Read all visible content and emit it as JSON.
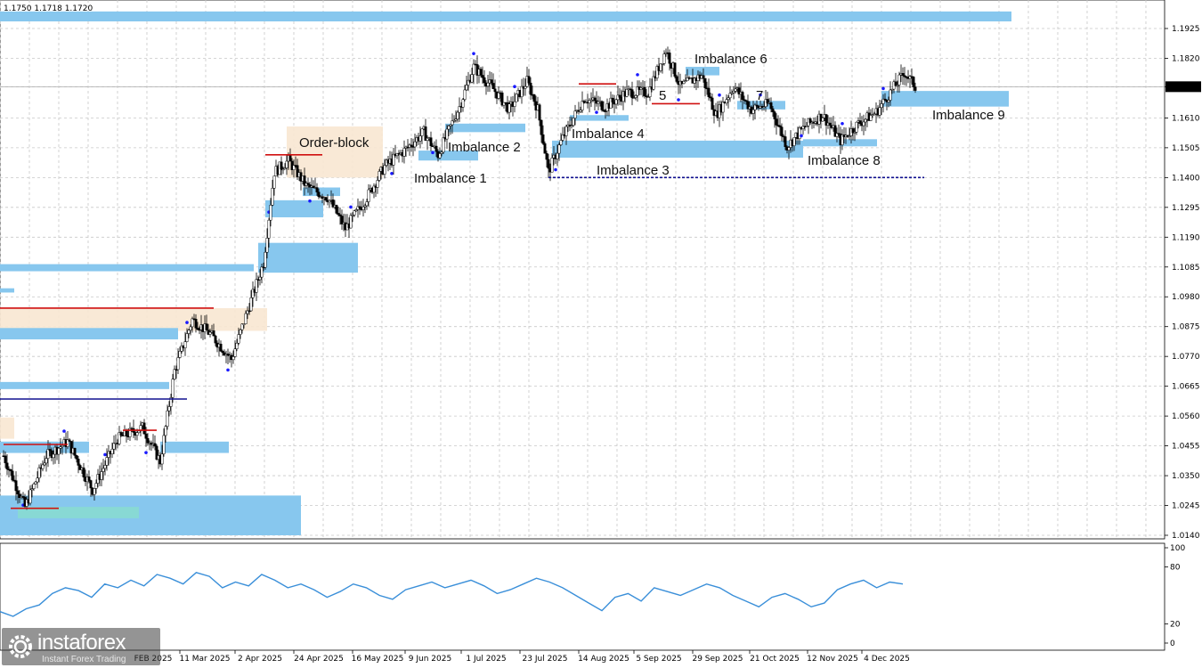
{
  "header": {
    "ohlc_text": "1.1750 1.1718 1.1720"
  },
  "chart_data": [
    {
      "type": "candlestick",
      "symbol_hint": "EUR/USD daily",
      "ylim": [
        1.014,
        1.198
      ],
      "y_ticks": [
        "1.1925",
        "1.1820",
        "1.1720",
        "1.1610",
        "1.1505",
        "1.1400",
        "1.1295",
        "1.1190",
        "1.1085",
        "1.0980",
        "1.0875",
        "1.0770",
        "1.0665",
        "1.0560",
        "1.0455",
        "1.0350",
        "1.0245",
        "1.0140"
      ],
      "current_price": "1.1720",
      "x_ticks": [
        "11 Mar 2025",
        "2 Apr 2025",
        "24 Apr 2025",
        "16 May 2025",
        "9 Jun 2025",
        "1 Jul 2025",
        "23 Jul 2025",
        "14 Aug 2025",
        "5 Sep 2025",
        "29 Sep 2025",
        "21 Oct 2025",
        "12 Nov 2025",
        "4 Dec 2025"
      ],
      "x_tick_partial": "FEB 2025",
      "grid": true,
      "annotations": [
        "Order-block",
        "Imbalance 1",
        "Imbalance 2",
        "Imbalance 3",
        "Imbalance 4",
        "5",
        "Imbalance 6",
        "7",
        "Imbalance 8",
        "Imbalance 9"
      ],
      "levels": {
        "imbalance_3_line": 1.14
      },
      "trend": [
        [
          0,
          1.042
        ],
        [
          12,
          1.024
        ],
        [
          24,
          1.042
        ],
        [
          36,
          1.047
        ],
        [
          50,
          1.03
        ],
        [
          64,
          1.048
        ],
        [
          78,
          1.052
        ],
        [
          88,
          1.04
        ],
        [
          96,
          1.072
        ],
        [
          106,
          1.09
        ],
        [
          116,
          1.085
        ],
        [
          128,
          1.076
        ],
        [
          138,
          1.095
        ],
        [
          146,
          1.11
        ],
        [
          152,
          1.142
        ],
        [
          160,
          1.146
        ],
        [
          170,
          1.137
        ],
        [
          182,
          1.133
        ],
        [
          192,
          1.122
        ],
        [
          204,
          1.133
        ],
        [
          214,
          1.144
        ],
        [
          226,
          1.15
        ],
        [
          236,
          1.156
        ],
        [
          244,
          1.148
        ],
        [
          256,
          1.165
        ],
        [
          264,
          1.179
        ],
        [
          274,
          1.172
        ],
        [
          284,
          1.164
        ],
        [
          294,
          1.174
        ],
        [
          300,
          1.164
        ],
        [
          306,
          1.142
        ],
        [
          314,
          1.154
        ],
        [
          326,
          1.168
        ],
        [
          338,
          1.165
        ],
        [
          350,
          1.17
        ],
        [
          362,
          1.17
        ],
        [
          372,
          1.185
        ],
        [
          380,
          1.172
        ],
        [
          392,
          1.176
        ],
        [
          400,
          1.162
        ],
        [
          410,
          1.172
        ],
        [
          420,
          1.164
        ],
        [
          430,
          1.166
        ],
        [
          440,
          1.151
        ],
        [
          450,
          1.158
        ],
        [
          460,
          1.162
        ],
        [
          470,
          1.153
        ],
        [
          480,
          1.159
        ],
        [
          490,
          1.163
        ],
        [
          498,
          1.17
        ],
        [
          506,
          1.177
        ],
        [
          512,
          1.172
        ]
      ]
    },
    {
      "type": "line",
      "name": "oscillator",
      "ylim": [
        0,
        100
      ],
      "y_ticks": [
        "100",
        "80",
        "20",
        "0"
      ],
      "values": [
        33,
        28,
        36,
        40,
        52,
        58,
        55,
        48,
        62,
        58,
        66,
        60,
        72,
        68,
        62,
        74,
        70,
        58,
        64,
        60,
        72,
        66,
        58,
        62,
        56,
        48,
        54,
        62,
        58,
        50,
        46,
        56,
        60,
        64,
        58,
        62,
        66,
        60,
        52,
        56,
        62,
        68,
        64,
        58,
        50,
        42,
        34,
        48,
        52,
        44,
        58,
        54,
        50,
        56,
        62,
        58,
        50,
        44,
        38,
        48,
        52,
        46,
        38,
        42,
        56,
        62,
        66,
        58,
        64,
        62
      ]
    }
  ],
  "logo": {
    "name": "instaforex",
    "tagline": "Instant Forex Trading"
  },
  "colors": {
    "zone_blue": "#87c7ee",
    "order_block": "#f8e7d2",
    "red_level": "#d01010",
    "navy_level": "#101090",
    "oscillator": "#3a8fd9",
    "teal_zone": "#88dccf"
  }
}
